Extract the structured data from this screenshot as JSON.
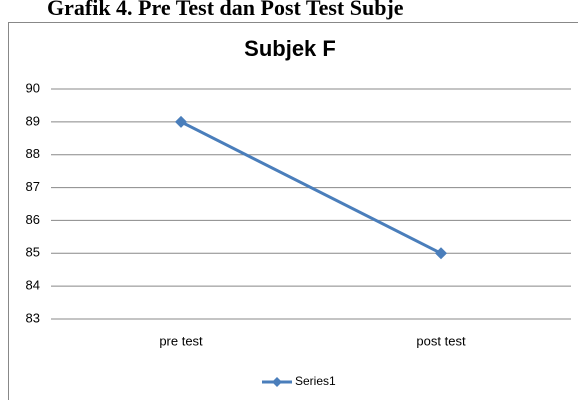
{
  "heading": "Grafik 4. Pre Test dan Post Test Subje",
  "chart_data": {
    "type": "line",
    "title": "Subjek F",
    "categories": [
      "pre test",
      "post test"
    ],
    "series": [
      {
        "name": "Series1",
        "color": "#4a7ebb",
        "values": [
          89,
          85
        ]
      }
    ],
    "ylim": [
      83,
      90
    ],
    "yticks": [
      83,
      84,
      85,
      86,
      87,
      88,
      89,
      90
    ],
    "grid": true,
    "legend": "bottom"
  }
}
